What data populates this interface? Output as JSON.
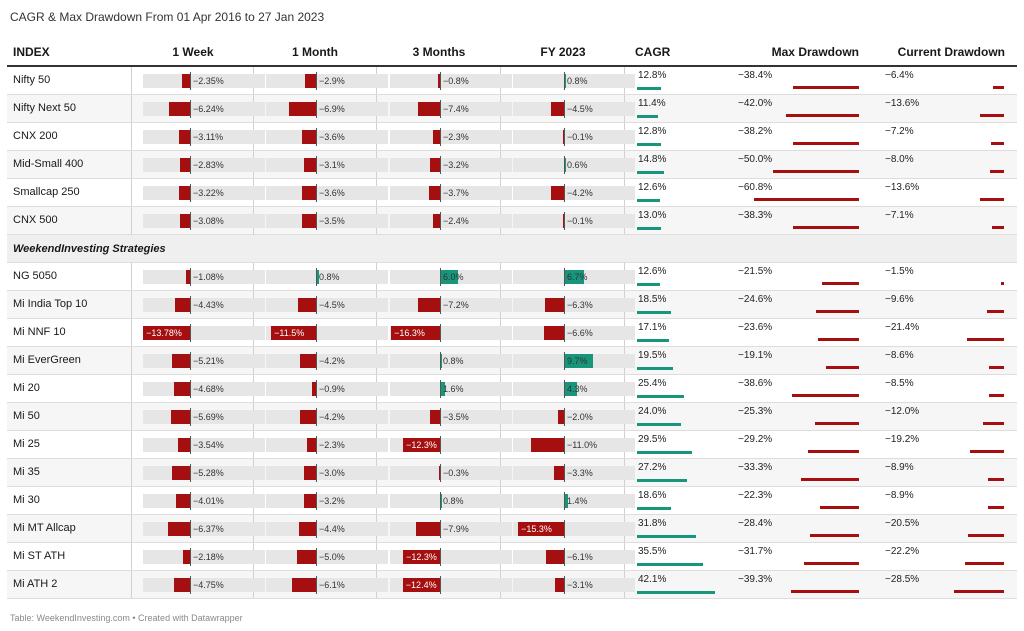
{
  "title": "CAGR & Max Drawdown From 01 Apr 2016 to 27 Jan 2023",
  "footer": "Table: WeekendInvesting.com • Created with Datawrapper",
  "colors": {
    "negative": "#a50f0f",
    "positive": "#17967c",
    "header_rule": "#333333"
  },
  "chart_data": {
    "type": "table",
    "columns": [
      "INDEX",
      "1 Week",
      "1 Month",
      "3 Months",
      "FY 2023",
      "CAGR",
      "Max Drawdown",
      "Current Drawdown"
    ],
    "groups": [
      {
        "name": "",
        "rows": [
          {
            "name": "Nifty 50",
            "w1": -2.35,
            "m1": -2.9,
            "m3": -0.8,
            "fy": 0.8,
            "cagr": 12.8,
            "maxdd": -38.4,
            "curdd": -6.4,
            "labels": [
              "−2.35%",
              "−2.9%",
              "−0.8%",
              "0.8%",
              "12.8%",
              "−38.4%",
              "−6.4%"
            ]
          },
          {
            "name": "Nifty Next 50",
            "w1": -6.24,
            "m1": -6.9,
            "m3": -7.4,
            "fy": -4.5,
            "cagr": 11.4,
            "maxdd": -42.0,
            "curdd": -13.6,
            "labels": [
              "−6.24%",
              "−6.9%",
              "−7.4%",
              "−4.5%",
              "11.4%",
              "−42.0%",
              "−13.6%"
            ]
          },
          {
            "name": "CNX 200",
            "w1": -3.11,
            "m1": -3.6,
            "m3": -2.3,
            "fy": -0.1,
            "cagr": 12.8,
            "maxdd": -38.2,
            "curdd": -7.2,
            "labels": [
              "−3.11%",
              "−3.6%",
              "−2.3%",
              "−0.1%",
              "12.8%",
              "−38.2%",
              "−7.2%"
            ]
          },
          {
            "name": "Mid-Small 400",
            "w1": -2.83,
            "m1": -3.1,
            "m3": -3.2,
            "fy": 0.6,
            "cagr": 14.8,
            "maxdd": -50.0,
            "curdd": -8.0,
            "labels": [
              "−2.83%",
              "−3.1%",
              "−3.2%",
              "0.6%",
              "14.8%",
              "−50.0%",
              "−8.0%"
            ]
          },
          {
            "name": "Smallcap 250",
            "w1": -3.22,
            "m1": -3.6,
            "m3": -3.7,
            "fy": -4.2,
            "cagr": 12.6,
            "maxdd": -60.8,
            "curdd": -13.6,
            "labels": [
              "−3.22%",
              "−3.6%",
              "−3.7%",
              "−4.2%",
              "12.6%",
              "−60.8%",
              "−13.6%"
            ]
          },
          {
            "name": "CNX 500",
            "w1": -3.08,
            "m1": -3.5,
            "m3": -2.4,
            "fy": -0.1,
            "cagr": 13.0,
            "maxdd": -38.3,
            "curdd": -7.1,
            "labels": [
              "−3.08%",
              "−3.5%",
              "−2.4%",
              "−0.1%",
              "13.0%",
              "−38.3%",
              "−7.1%"
            ]
          }
        ]
      },
      {
        "name": "WeekendInvesting Strategies",
        "rows": [
          {
            "name": "NG 5050",
            "w1": -1.08,
            "m1": 0.8,
            "m3": 6.0,
            "fy": 6.7,
            "cagr": 12.6,
            "maxdd": -21.5,
            "curdd": -1.5,
            "labels": [
              "−1.08%",
              "0.8%",
              "6.0%",
              "6.7%",
              "12.6%",
              "−21.5%",
              "−1.5%"
            ]
          },
          {
            "name": "Mi India Top 10",
            "w1": -4.43,
            "m1": -4.5,
            "m3": -7.2,
            "fy": -6.3,
            "cagr": 18.5,
            "maxdd": -24.6,
            "curdd": -9.6,
            "labels": [
              "−4.43%",
              "−4.5%",
              "−7.2%",
              "−6.3%",
              "18.5%",
              "−24.6%",
              "−9.6%"
            ]
          },
          {
            "name": "Mi NNF 10",
            "w1": -13.78,
            "m1": -11.5,
            "m3": -16.3,
            "fy": -6.6,
            "cagr": 17.1,
            "maxdd": -23.6,
            "curdd": -21.4,
            "labels": [
              "−13.78%",
              "−11.5%",
              "−16.3%",
              "−6.6%",
              "17.1%",
              "−23.6%",
              "−21.4%"
            ]
          },
          {
            "name": "Mi EverGreen",
            "w1": -5.21,
            "m1": -4.2,
            "m3": 0.8,
            "fy": 9.7,
            "cagr": 19.5,
            "maxdd": -19.1,
            "curdd": -8.6,
            "labels": [
              "−5.21%",
              "−4.2%",
              "0.8%",
              "9.7%",
              "19.5%",
              "−19.1%",
              "−8.6%"
            ]
          },
          {
            "name": "Mi 20",
            "w1": -4.68,
            "m1": -0.9,
            "m3": 1.6,
            "fy": 4.3,
            "cagr": 25.4,
            "maxdd": -38.6,
            "curdd": -8.5,
            "labels": [
              "−4.68%",
              "−0.9%",
              "1.6%",
              "4.3%",
              "25.4%",
              "−38.6%",
              "−8.5%"
            ]
          },
          {
            "name": "Mi 50",
            "w1": -5.69,
            "m1": -4.2,
            "m3": -3.5,
            "fy": -2.0,
            "cagr": 24.0,
            "maxdd": -25.3,
            "curdd": -12.0,
            "labels": [
              "−5.69%",
              "−4.2%",
              "−3.5%",
              "−2.0%",
              "24.0%",
              "−25.3%",
              "−12.0%"
            ]
          },
          {
            "name": "Mi 25",
            "w1": -3.54,
            "m1": -2.3,
            "m3": -12.3,
            "fy": -11.0,
            "cagr": 29.5,
            "maxdd": -29.2,
            "curdd": -19.2,
            "labels": [
              "−3.54%",
              "−2.3%",
              "−12.3%",
              "−11.0%",
              "29.5%",
              "−29.2%",
              "−19.2%"
            ]
          },
          {
            "name": "Mi 35",
            "w1": -5.28,
            "m1": -3.0,
            "m3": -0.3,
            "fy": -3.3,
            "cagr": 27.2,
            "maxdd": -33.3,
            "curdd": -8.9,
            "labels": [
              "−5.28%",
              "−3.0%",
              "−0.3%",
              "−3.3%",
              "27.2%",
              "−33.3%",
              "−8.9%"
            ]
          },
          {
            "name": "Mi 30",
            "w1": -4.01,
            "m1": -3.2,
            "m3": 0.8,
            "fy": 1.4,
            "cagr": 18.6,
            "maxdd": -22.3,
            "curdd": -8.9,
            "labels": [
              "−4.01%",
              "−3.2%",
              "0.8%",
              "1.4%",
              "18.6%",
              "−22.3%",
              "−8.9%"
            ]
          },
          {
            "name": "Mi MT Allcap",
            "w1": -6.37,
            "m1": -4.4,
            "m3": -7.9,
            "fy": -15.3,
            "cagr": 31.8,
            "maxdd": -28.4,
            "curdd": -20.5,
            "labels": [
              "−6.37%",
              "−4.4%",
              "−7.9%",
              "−15.3%",
              "31.8%",
              "−28.4%",
              "−20.5%"
            ]
          },
          {
            "name": "Mi ST ATH",
            "w1": -2.18,
            "m1": -5.0,
            "m3": -12.3,
            "fy": -6.1,
            "cagr": 35.5,
            "maxdd": -31.7,
            "curdd": -22.2,
            "labels": [
              "−2.18%",
              "−5.0%",
              "−12.3%",
              "−6.1%",
              "35.5%",
              "−31.7%",
              "−22.2%"
            ]
          },
          {
            "name": "Mi ATH 2",
            "w1": -4.75,
            "m1": -6.1,
            "m3": -12.4,
            "fy": -3.1,
            "cagr": 42.1,
            "maxdd": -39.3,
            "curdd": -28.5,
            "labels": [
              "−4.75%",
              "−6.1%",
              "−12.4%",
              "−3.1%",
              "42.1%",
              "−39.3%",
              "−28.5%"
            ]
          }
        ]
      }
    ]
  }
}
